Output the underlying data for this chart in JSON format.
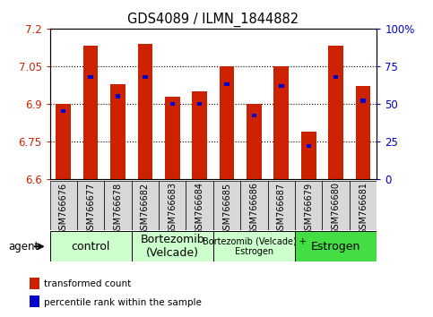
{
  "title": "GDS4089 / ILMN_1844882",
  "samples": [
    "GSM766676",
    "GSM766677",
    "GSM766678",
    "GSM766682",
    "GSM766683",
    "GSM766684",
    "GSM766685",
    "GSM766686",
    "GSM766687",
    "GSM766679",
    "GSM766680",
    "GSM766681"
  ],
  "transformed_counts": [
    6.9,
    7.13,
    6.98,
    7.14,
    6.93,
    6.95,
    7.05,
    6.9,
    7.05,
    6.79,
    7.13,
    6.97
  ],
  "percentile_ranks": [
    45,
    68,
    55,
    68,
    50,
    50,
    63,
    42,
    62,
    22,
    68,
    52
  ],
  "ylim_left": [
    6.6,
    7.2
  ],
  "ylim_right": [
    0,
    100
  ],
  "yticks_left": [
    6.6,
    6.75,
    6.9,
    7.05,
    7.2
  ],
  "yticks_right": [
    0,
    25,
    50,
    75,
    100
  ],
  "groups": [
    {
      "label": "control",
      "start": 0,
      "end": 3,
      "color": "#ccffcc",
      "fontsize": 9
    },
    {
      "label": "Bortezomib\n(Velcade)",
      "start": 3,
      "end": 6,
      "color": "#ccffcc",
      "fontsize": 9
    },
    {
      "label": "Bortezomib (Velcade) +\nEstrogen",
      "start": 6,
      "end": 9,
      "color": "#ccffcc",
      "fontsize": 7
    },
    {
      "label": "Estrogen",
      "start": 9,
      "end": 12,
      "color": "#44dd44",
      "fontsize": 9
    }
  ],
  "bar_color": "#cc2200",
  "percentile_color": "#0000cc",
  "bar_width": 0.55,
  "perc_bar_width": 0.18,
  "perc_bar_height": 2.5,
  "legend_items": [
    {
      "label": "transformed count",
      "color": "#cc2200"
    },
    {
      "label": "percentile rank within the sample",
      "color": "#0000cc"
    }
  ],
  "agent_label": "agent"
}
